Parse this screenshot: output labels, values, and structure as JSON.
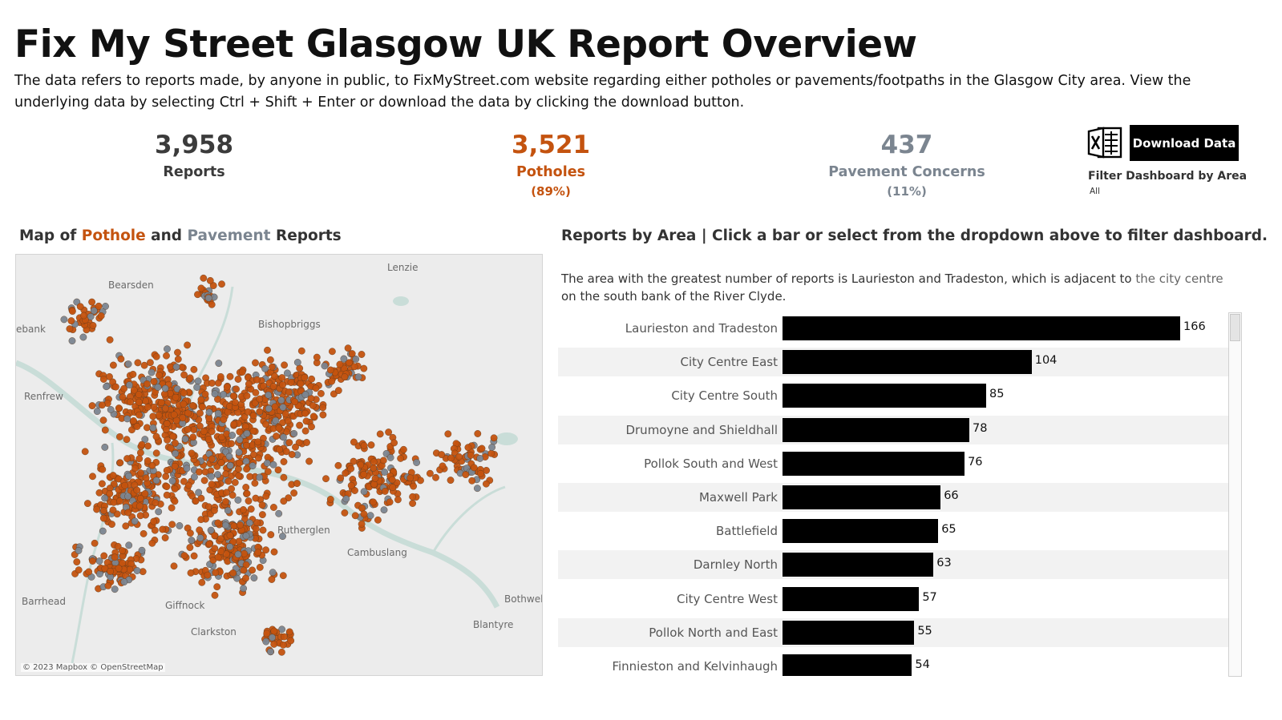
{
  "header": {
    "title": "Fix My Street Glasgow UK Report Overview",
    "subtitle": "The data refers to reports made, by anyone in public, to FixMyStreet.com website regarding either potholes or pavements/footpaths in the Glasgow City area. View the underlying data by selecting Ctrl + Shift + Enter or download the data by clicking the download button."
  },
  "kpis": {
    "reports": {
      "value": "3,958",
      "label": "Reports"
    },
    "potholes": {
      "value": "3,521",
      "label": "Potholes",
      "pct": "(89%)"
    },
    "pavement": {
      "value": "437",
      "label": "Pavement Concerns",
      "pct": "(11%)"
    }
  },
  "toolbar": {
    "download_label": "Download Data",
    "excel_icon": "excel-icon",
    "filter_label": "Filter Dashboard by Area",
    "filter_value": "All"
  },
  "map": {
    "title_prefix": "Map of",
    "title_pothole": "Pothole",
    "title_and": "and",
    "title_pavement": "Pavement",
    "title_suffix": "Reports",
    "places": [
      "Lenzie",
      "Bearsden",
      "Bishopbriggs",
      "ebank",
      "Renfrew",
      "Rutherglen",
      "Cambuslang",
      "Barrhead",
      "Giffnock",
      "Clarkston",
      "Bothwel",
      "Blantyre"
    ],
    "credit": "© 2023 Mapbox © OpenStreetMap",
    "colors": {
      "pothole": "#c4530f",
      "pavement": "#7b8590",
      "water": "#c9ddd8",
      "land": "#ececec"
    }
  },
  "bars": {
    "title": "Reports by Area | Click a bar or select from the dropdown above to filter dashboard.",
    "desc_main": "The area with the greatest number of reports is Laurieston and Tradeston, which is adjacent to ",
    "desc_highlight": "the city centre",
    "desc_end": " on the south bank of the River Clyde."
  },
  "chart_data": {
    "type": "bar",
    "orientation": "horizontal",
    "categories": [
      "Laurieston and Tradeston",
      "City Centre East",
      "City Centre South",
      "Drumoyne and Shieldhall",
      "Pollok South and West",
      "Maxwell Park",
      "Battlefield",
      "Darnley North",
      "City Centre West",
      "Pollok North and East",
      "Finnieston and Kelvinhaugh"
    ],
    "values": [
      166,
      104,
      85,
      78,
      76,
      66,
      65,
      63,
      57,
      55,
      54
    ],
    "bar_color": "#000000",
    "xlim": [
      0,
      166
    ]
  }
}
